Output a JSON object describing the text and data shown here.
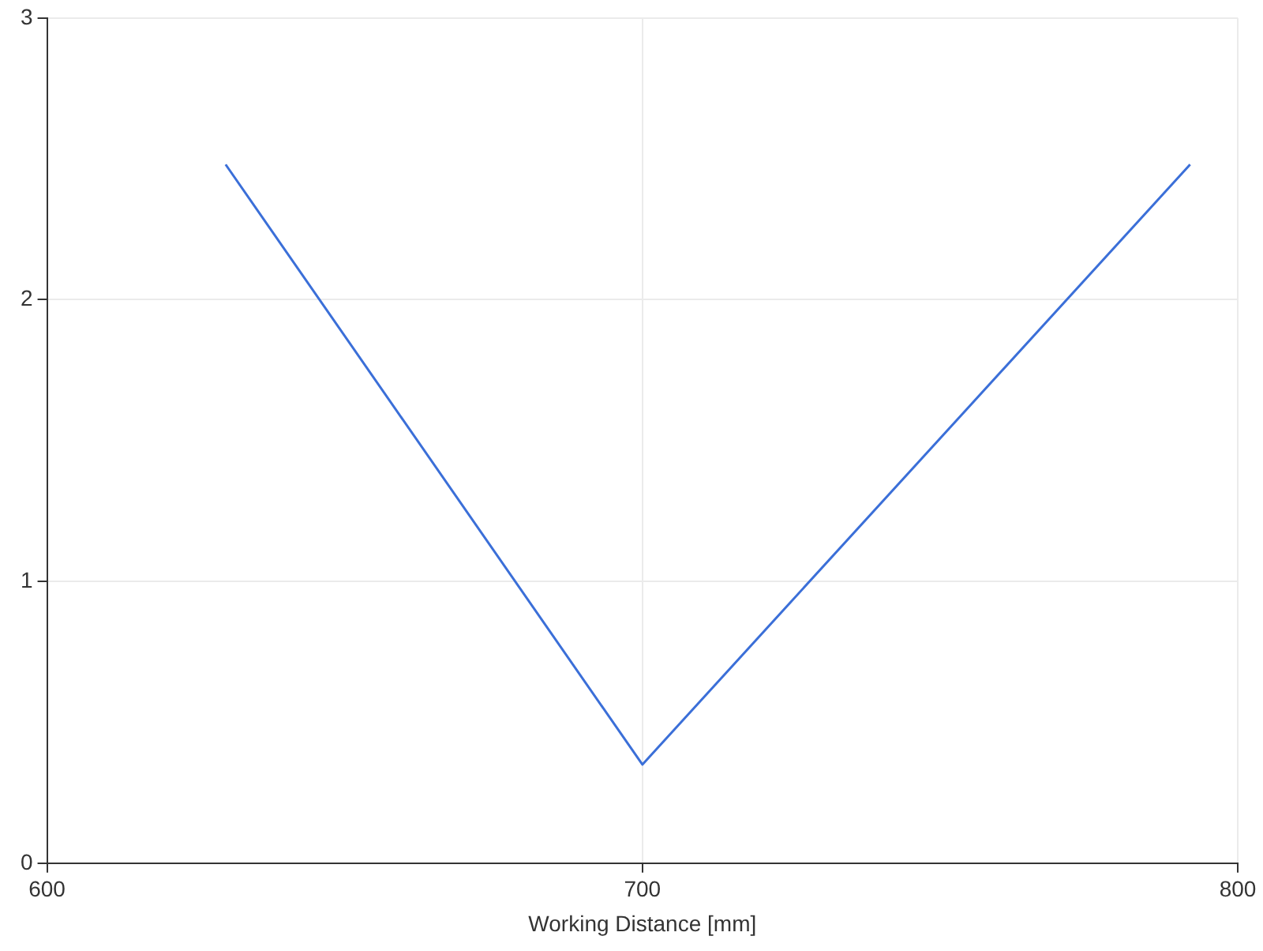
{
  "chart_data": {
    "type": "line",
    "xlabel": "Working Distance [mm]",
    "series": [
      {
        "color": "#3b6fd8",
        "x": [
          630,
          700,
          792
        ],
        "values": [
          2.48,
          0.35,
          2.48
        ]
      }
    ],
    "xlim": [
      600,
      800
    ],
    "xticks": [
      600,
      700,
      800
    ],
    "ylim": [
      0,
      3
    ],
    "yticks": [
      0,
      1,
      2,
      3
    ],
    "grid": true,
    "legend": false,
    "marker": "none",
    "line_style": "solid"
  }
}
